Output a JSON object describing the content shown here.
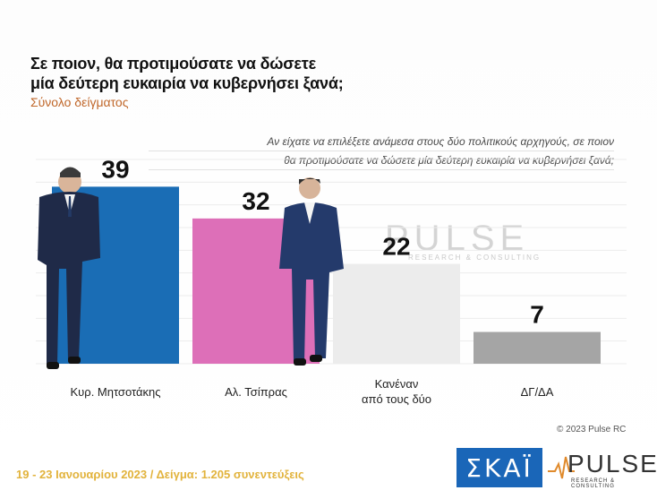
{
  "header": {
    "title_line1": "Σε ποιον, θα προτιμούσατε να δώσετε",
    "title_line2": "μία δεύτερη ευκαιρία να κυβερνήσει ξανά;",
    "subtitle": "Σύνολο δείγματος"
  },
  "question": {
    "line1": "Αν είχατε να επιλέξετε ανάμεσα στους δύο πολιτικούς αρχηγούς, σε ποιον",
    "line2": "θα προτιμούσατε να δώσετε μία δεύτερη ευκαιρία να κυβερνήσει ξανά;"
  },
  "watermark": {
    "word": "PULSE",
    "tag": "RESEARCH & CONSULTING"
  },
  "chart_data": {
    "type": "bar",
    "categories": [
      "Κυρ. Μητσοτάκης",
      "Αλ. Τσίπρας",
      "Κανέναν από τους δύο",
      "ΔΓ/ΔΑ"
    ],
    "category_lines": [
      [
        "Κυρ. Μητσοτάκης"
      ],
      [
        "Αλ. Τσίπρας"
      ],
      [
        "Κανέναν",
        "από τους δύο"
      ],
      [
        "ΔΓ/ΔΑ"
      ]
    ],
    "values": [
      39,
      32,
      22,
      7
    ],
    "colors": [
      "#1a6db5",
      "#dd6fb8",
      "#ececec",
      "#a5a5a5"
    ],
    "ylim": [
      0,
      45
    ],
    "grid": true,
    "value_labels": true
  },
  "footer": {
    "copyright": "© 2023 Pulse RC",
    "fieldwork": "19 - 23 Ιανουαρίου 2023 / Δείγμα: 1.205 συνεντεύξεις",
    "skai_logo": "ΣΚΑΪ",
    "pulse_logo": "PULSE",
    "pulse_tag": "RESEARCH & CONSULTING"
  }
}
